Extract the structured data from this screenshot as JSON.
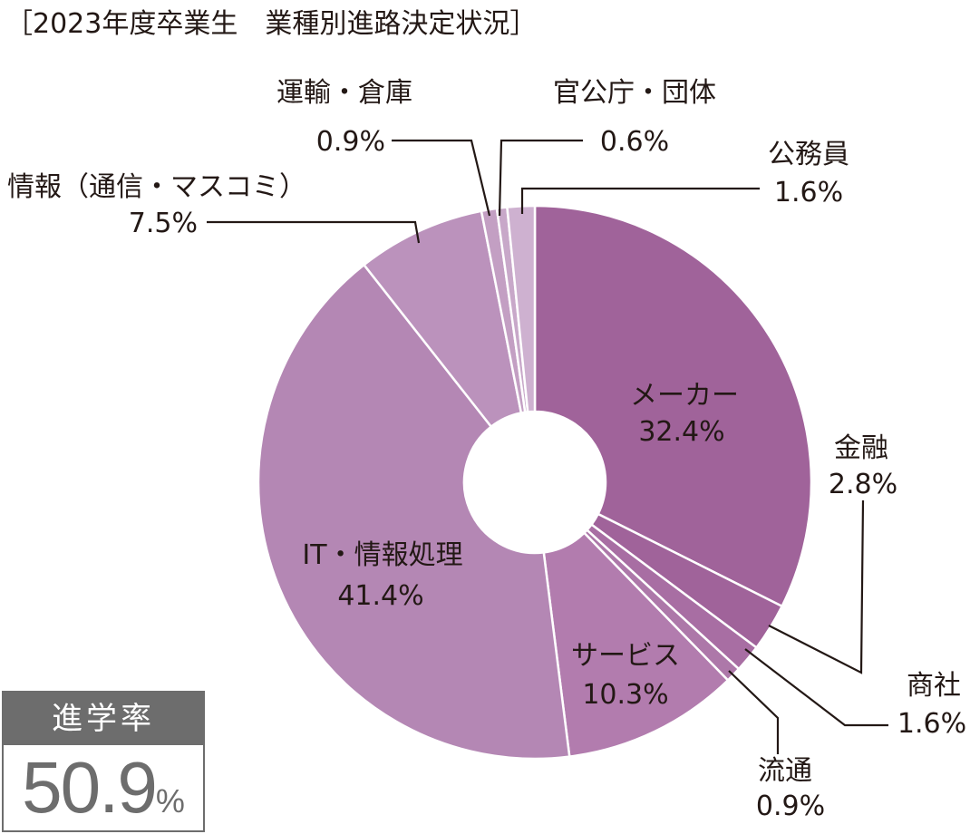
{
  "chart_data": {
    "type": "pie",
    "title": "［2023年度卒業生　業種別進路決定状況］",
    "donut": true,
    "slices": [
      {
        "label": "メーカー",
        "value": 32.4,
        "display": "32.4%",
        "color": "#a0639a"
      },
      {
        "label": "金融",
        "value": 2.8,
        "display": "2.8%",
        "color": "#a0639a"
      },
      {
        "label": "商社",
        "value": 1.6,
        "display": "1.6%",
        "color": "#a86ea3"
      },
      {
        "label": "流通",
        "value": 0.9,
        "display": "0.9%",
        "color": "#ad78a9"
      },
      {
        "label": "サービス",
        "value": 10.3,
        "display": "10.3%",
        "color": "#b27cae"
      },
      {
        "label": "IT・情報処理",
        "value": 41.4,
        "display": "41.4%",
        "color": "#b487b4"
      },
      {
        "label": "情報（通信・マスコミ）",
        "value": 7.5,
        "display": "7.5%",
        "color": "#bb92bc"
      },
      {
        "label": "運輸・倉庫",
        "value": 0.9,
        "display": "0.9%",
        "color": "#c39fc3"
      },
      {
        "label": "官公庁・団体",
        "value": 0.6,
        "display": "0.6%",
        "color": "#c8a8c9"
      },
      {
        "label": "公務員",
        "value": 1.6,
        "display": "1.6%",
        "color": "#ceb1d0"
      }
    ]
  },
  "rate": {
    "label": "進学率",
    "value": "50.9",
    "unit": "%"
  }
}
